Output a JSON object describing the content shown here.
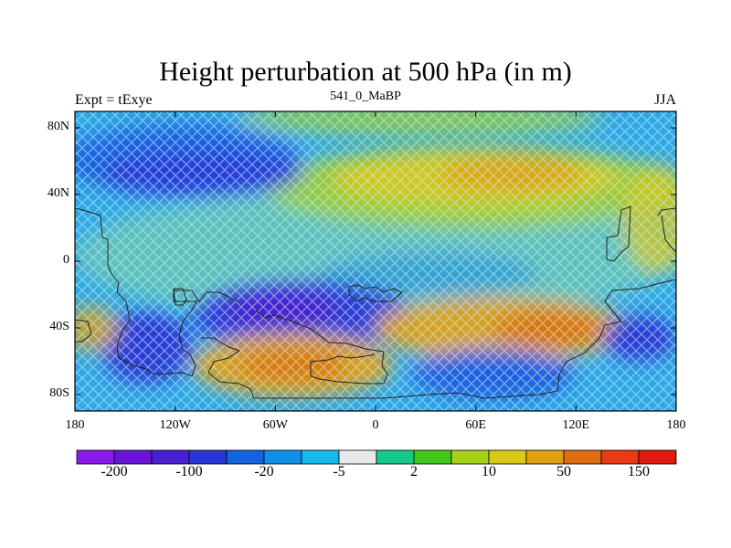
{
  "header": {
    "title": "Height perturbation at 500 hPa (in m)",
    "left_label": "Expt = tExye",
    "center_label": "541_0_MaBP",
    "right_label": "JJA"
  },
  "axes": {
    "y_ticks": [
      "80N",
      "40N",
      "0",
      "40S",
      "80S"
    ],
    "x_ticks": [
      "180",
      "120W",
      "60W",
      "0",
      "60E",
      "120E",
      "180"
    ]
  },
  "colorbar": {
    "colors": [
      "#8c1ae6",
      "#6a14d8",
      "#4a1fd0",
      "#2a35d6",
      "#1264e0",
      "#0e8fe8",
      "#17b8ec",
      "#e8e8e8",
      "#18c888",
      "#3ec81a",
      "#a8d21a",
      "#d8c81a",
      "#e0a014",
      "#de6e10",
      "#e83a14",
      "#e01a0e"
    ],
    "labels": [
      "-200",
      "-100",
      "-20",
      "-5",
      "2",
      "10",
      "50",
      "150"
    ]
  },
  "chart_data": {
    "type": "heatmap",
    "title": "Height perturbation at 500 hPa (in m)",
    "xlim": [
      -180,
      180
    ],
    "ylim": [
      -90,
      90
    ],
    "units": "m",
    "features": [
      {
        "lon": -100,
        "lat": 50,
        "value": -100
      },
      {
        "lon": 60,
        "lat": 50,
        "value": 50
      },
      {
        "lon": -60,
        "lat": -30,
        "value": -150
      },
      {
        "lon": -130,
        "lat": -55,
        "value": -100
      },
      {
        "lon": -50,
        "lat": -65,
        "value": 50
      },
      {
        "lon": 90,
        "lat": -40,
        "value": 150
      },
      {
        "lon": 90,
        "lat": -65,
        "value": -50
      },
      {
        "lon": 150,
        "lat": -45,
        "value": -100
      },
      {
        "lon": 100,
        "lat": 0,
        "value": -5
      }
    ]
  }
}
